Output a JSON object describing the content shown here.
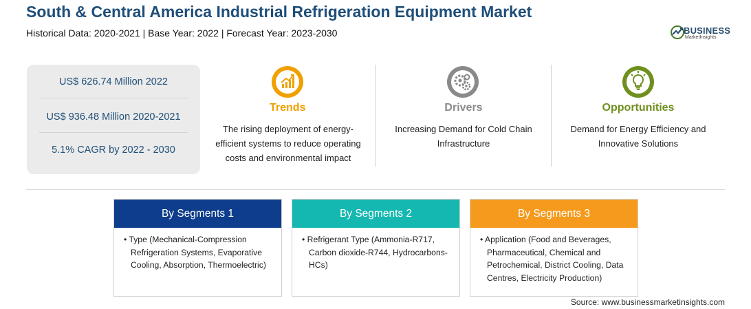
{
  "header": {
    "title": "South & Central America Industrial Refrigeration Equipment Market",
    "subtitle": "Historical Data: 2020-2021 | Base Year: 2022 | Forecast Year: 2023-2030"
  },
  "logo": {
    "name": "BUSINESS",
    "tagline": "MarketInsights",
    "icon": "globe-icon"
  },
  "stats": [
    "US$ 626.74 Million 2022",
    "US$ 936.48 Million 2020-2021",
    "5.1% CAGR by 2022 - 2030"
  ],
  "columns": [
    {
      "heading": "Trends",
      "icon": "chart-growth-icon",
      "color": "#f0a000",
      "lines": [
        "The rising deployment of energy-",
        "efficient systems to reduce operating",
        "costs and environmental impact"
      ]
    },
    {
      "heading": "Drivers",
      "icon": "gears-icon",
      "color": "#8a8a8a",
      "lines": [
        "Increasing Demand for Cold Chain",
        "Infrastructure"
      ]
    },
    {
      "heading": "Opportunities",
      "icon": "lightbulb-icon",
      "color": "#6f8f1f",
      "lines": [
        "Demand for Energy Efficiency and",
        "Innovative Solutions"
      ]
    }
  ],
  "segments": [
    {
      "title": "By Segments 1",
      "color": "#0d3d8c",
      "lines": [
        "• Type (Mechanical-Compression",
        "Refrigeration Systems, Evaporative",
        "Cooling, Absorption, Thermoelectric)"
      ]
    },
    {
      "title": "By Segments 2",
      "color": "#14b8b0",
      "lines": [
        "• Refrigerant Type (Ammonia-R717,",
        "Carbon dioxide-R744, Hydrocarbons-",
        "HCs)"
      ]
    },
    {
      "title": "By Segments 3",
      "color": "#f59a1c",
      "lines": [
        "• Application (Food and Beverages,",
        "Pharmaceutical, Chemical and",
        "Petrochemical, District Cooling, Data",
        "Centres, Electricity Production)"
      ]
    }
  ],
  "source": "Source: www.businessmarketinsights.com"
}
